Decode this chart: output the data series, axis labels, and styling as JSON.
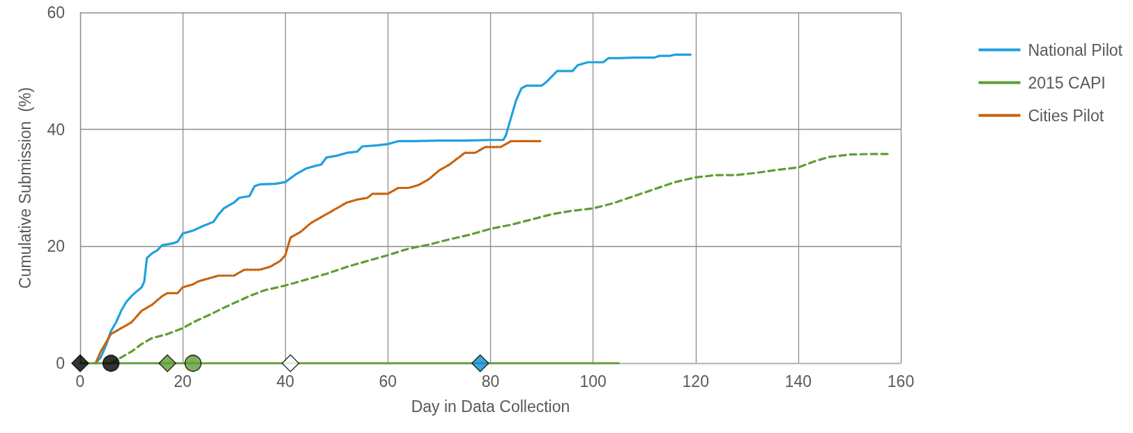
{
  "chart_data": {
    "type": "line",
    "xlabel": "Day in Data Collection",
    "ylabel": "Cumulative Submission  (%)",
    "xlim": [
      0,
      160
    ],
    "xticks": [
      0,
      20,
      40,
      60,
      80,
      100,
      120,
      140,
      160
    ],
    "ylim": [
      0,
      60
    ],
    "yticks": [
      0,
      20,
      40,
      60
    ],
    "grid": true,
    "legend": "top right",
    "marker": "none",
    "series": [
      {
        "name": "National Pilot",
        "color": "#1ea1dc",
        "line_style": "solid",
        "x": [
          3,
          4,
          5,
          6,
          7,
          8,
          9,
          10,
          11,
          12,
          12.5,
          13,
          14,
          15,
          16,
          18,
          19,
          20,
          22,
          24,
          26,
          27,
          28,
          30,
          31,
          33,
          34,
          35,
          38,
          40,
          42,
          44,
          46,
          47,
          48,
          50,
          52,
          54,
          55,
          58,
          60,
          62,
          65,
          70,
          75,
          80,
          82.5,
          83,
          84,
          85,
          86,
          87,
          90,
          91,
          93,
          96,
          97,
          99,
          102,
          103,
          105,
          108,
          112,
          113,
          115,
          116,
          119
        ],
        "values": [
          0,
          1,
          3,
          5.5,
          7,
          9,
          10.5,
          11.5,
          12.3,
          13,
          14,
          18,
          18.8,
          19.3,
          20.2,
          20.5,
          20.8,
          22.2,
          22.7,
          23.5,
          24.2,
          25.5,
          26.5,
          27.5,
          28.3,
          28.6,
          30.3,
          30.6,
          30.7,
          31,
          32.3,
          33.3,
          33.8,
          34,
          35.2,
          35.5,
          36,
          36.2,
          37.1,
          37.3,
          37.5,
          38,
          38,
          38.1,
          38.1,
          38.2,
          38.2,
          39,
          42,
          45,
          47,
          47.5,
          47.5,
          48.2,
          50,
          50,
          51,
          51.5,
          51.5,
          52.2,
          52.2,
          52.3,
          52.3,
          52.6,
          52.6,
          52.8,
          52.8
        ]
      },
      {
        "name": "2015 CAPI",
        "color": "#5e9e34",
        "line_style": "dashed",
        "x": [
          6,
          8,
          10,
          12,
          14,
          17,
          20,
          22,
          25,
          28,
          30,
          33,
          36,
          40,
          44,
          48,
          52,
          56,
          60,
          64,
          68,
          72,
          76,
          80,
          84,
          88,
          92,
          96,
          100,
          104,
          108,
          112,
          116,
          120,
          124,
          128,
          132,
          136,
          140,
          143,
          146,
          150,
          154,
          158
        ],
        "values": [
          0,
          1,
          2,
          3.3,
          4.3,
          5,
          6,
          7,
          8.2,
          9.5,
          10.3,
          11.5,
          12.5,
          13.3,
          14.3,
          15.3,
          16.5,
          17.5,
          18.5,
          19.6,
          20.3,
          21.2,
          22,
          23,
          23.7,
          24.6,
          25.5,
          26.1,
          26.5,
          27.4,
          28.6,
          29.8,
          31,
          31.8,
          32.2,
          32.2,
          32.6,
          33.1,
          33.5,
          34.5,
          35.3,
          35.7,
          35.8,
          35.8
        ]
      },
      {
        "name": "Cities Pilot",
        "color": "#c8630c",
        "line_style": "dotted",
        "x": [
          3,
          4,
          5,
          6,
          8,
          10,
          12,
          14,
          16,
          17,
          19,
          20,
          22,
          23,
          25,
          27,
          30,
          32,
          35,
          37,
          39,
          40,
          41,
          43,
          45,
          47,
          50,
          52,
          54,
          56,
          57,
          60,
          62,
          64,
          66,
          68,
          70,
          72,
          75,
          77,
          78,
          79,
          82,
          83,
          84,
          90
        ],
        "values": [
          0,
          2,
          3.5,
          5,
          6,
          7,
          9,
          10,
          11.5,
          12,
          12,
          13,
          13.5,
          14,
          14.5,
          15,
          15,
          16,
          16,
          16.5,
          17.5,
          18.5,
          21.5,
          22.5,
          24,
          25,
          26.5,
          27.5,
          28,
          28.3,
          29,
          29,
          30,
          30,
          30.5,
          31.5,
          33,
          34,
          36,
          36,
          36.5,
          37,
          37,
          37.5,
          38,
          38
        ]
      },
      {
        "color": "#5e9e34",
        "line_style": "solid",
        "x": [
          0,
          105
        ],
        "values": [
          0,
          0
        ]
      },
      {
        "type": "scatter",
        "marker": "diamond",
        "x": [
          0,
          17,
          41,
          78
        ],
        "values": [
          0,
          0,
          0,
          0
        ],
        "colors": [
          "#000000",
          "#5e9e34",
          "#ffffff",
          "#0b8fd4"
        ]
      },
      {
        "type": "scatter",
        "marker": "circle",
        "x": [
          6,
          22
        ],
        "values": [
          0,
          0
        ],
        "colors": [
          "#000000",
          "#5e9e34"
        ]
      }
    ]
  }
}
